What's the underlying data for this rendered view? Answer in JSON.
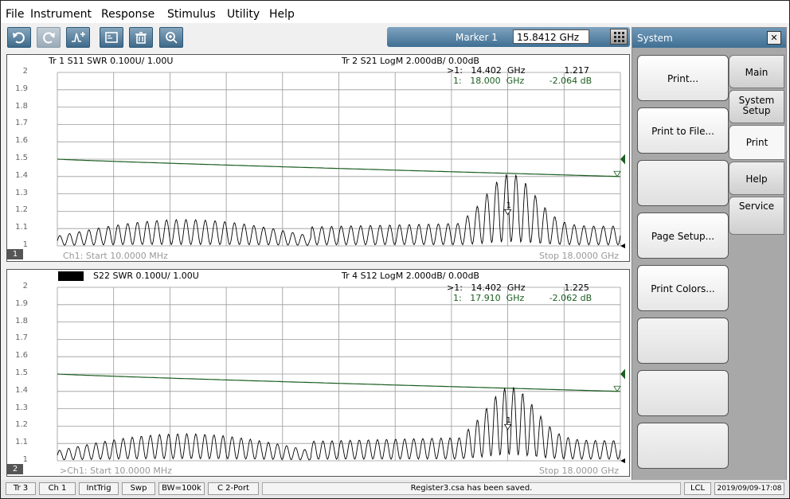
{
  "menu": [
    "File",
    "Instrument",
    "Response",
    "Stimulus",
    "Utility",
    "Help"
  ],
  "toolbar": {
    "marker_label": "Marker 1",
    "marker_value": "15.8412 GHz"
  },
  "plot1": {
    "tr1_label": "Tr 1  S11 SWR 0.100U/  1.00U",
    "tr2_label": "Tr 2  S21 LogM 2.000dB/  0.00dB",
    "marker_row1": ">1:   14.402  GHz              1.217",
    "marker_row2": "1:   18.000  GHz         -2.064 dB",
    "start": "Ch1:  Start  10.0000 MHz",
    "stop": "Stop  18.0000 GHz",
    "channel": "1"
  },
  "plot2": {
    "tr3_label": "S22 SWR 0.100U/  1.00U",
    "tr4_label": "Tr 4  S12 LogM 2.000dB/  0.00dB",
    "marker_row1": ">1:   14.402  GHz              1.225",
    "marker_row2": "1:   17.910  GHz         -2.062 dB",
    "start": ">Ch1:  Start  10.0000 MHz",
    "stop": "Stop  18.0000 GHz",
    "channel": "2"
  },
  "y_ticks": [
    "2",
    "1.9",
    "1.8",
    "1.7",
    "1.6",
    "1.5",
    "1.4",
    "1.3",
    "1.2",
    "1.1",
    "1"
  ],
  "system": {
    "title": "System",
    "close": "✕",
    "buttons": [
      "Print...",
      "Print to File...",
      "",
      "Page Setup...",
      "Print Colors...",
      "",
      "",
      ""
    ],
    "tabs": [
      "Main",
      "System Setup",
      "Print",
      "Help",
      "Service"
    ]
  },
  "status": [
    "Tr 3",
    "Ch 1",
    "IntTrig",
    "Swp",
    "BW=100k",
    "C  2-Port",
    "Register3.csa has been saved.",
    "LCL",
    "2019/09/09-17:08"
  ],
  "colors": {
    "trace_swr": "#000000",
    "trace_logm": "#1b5e20",
    "accent": "#3f6f93"
  }
}
